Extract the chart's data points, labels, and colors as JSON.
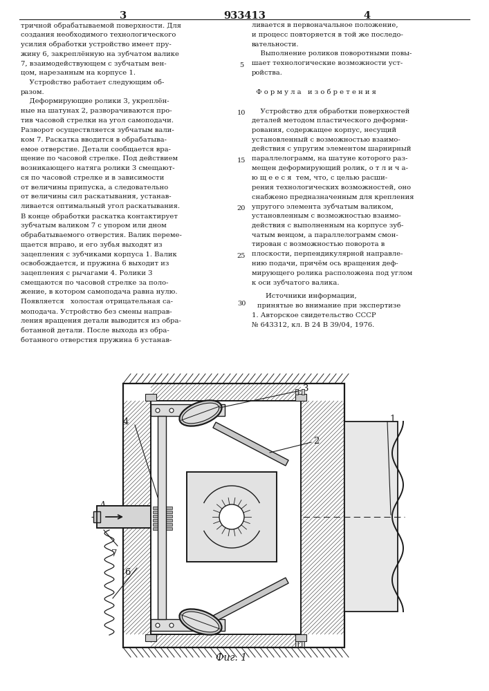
{
  "background_color": "#ffffff",
  "text_color": "#1a1a1a",
  "page_num_left": "3",
  "patent_num": "933413",
  "page_num_right": "4",
  "col1_text": [
    "тричной обрабатываемой поверхности. Для",
    "создания необходимого технологического",
    "усилия обработки устройство имеет пру-",
    "жину 6, закреплённую на зубчатом валике",
    "7, взаимодействующем с зубчатым вен-",
    "цом, нарезанным на корпусе 1.",
    "    Устройство работает следующим об-",
    "разом.",
    "    Деформирующие ролики 3, укреплён-",
    "ные на шатунах 2, разворачиваются про-",
    "тив часовой стрелки на угол самоподачи.",
    "Разворот осуществляется зубчатым вали-",
    "ком 7. Раскатка вводится в обрабатыва-",
    "емое отверстие. Детали сообщается вра-",
    "щение по часовой стрелке. Под действием",
    "возникающего натяга ролики 3 смещают-",
    "ся по часовой стрелке и в зависимости",
    "от величины припуска, а следовательно",
    "от величины сил раскатывания, устанав-",
    "ливается оптимальный угол раскатывания.",
    "В конце обработки раскатка контактирует",
    "зубчатым валиком 7 с упором или дном",
    "обрабатываемого отверстия. Валик переме-",
    "щается вправо, и его зубья выходят из",
    "зацепления с зубчиками корпуса 1. Валик",
    "освобождается, и пружина 6 выходит из",
    "зацепления с рычагами 4. Ролики 3",
    "смещаются по часовой стрелке за поло-",
    "жение, в котором самоподача равна нулю.",
    "Появляется   холостая отрицательная са-",
    "моподача. Устройство без смены направ-",
    "ления вращения детали выводится из обра-",
    "ботанной детали. После выхода из обра-",
    "ботанного отверстия пружина 6 устанав-"
  ],
  "col2_text": [
    "ливается в первоначальное положение,",
    "и процесс повторяется в той же последо-",
    "вательности.",
    "    Выполнение роликов поворотными повы-",
    "шает технологические возможности уст-",
    "ройства.",
    "",
    "  Ф о р м у л а   и з о б р е т е н и я",
    "",
    "    Устройство для обработки поверхностей",
    "деталей методом пластического деформи-",
    "рования, содержащее корпус, несущий",
    "установленный с возможностью взаимо-",
    "действия с упругим элементом шарнирный",
    "параллелограмм, на шатуне которого раз-",
    "мещен деформирующий ролик, о т л и ч а-",
    "ю щ е е с я  тем, что, с целью расши-",
    "рения технологических возможностей, оно",
    "снабжено предназначенным для крепления",
    "упругого элемента зубчатым валиком,",
    "установленным с возможностью взаимо-",
    "действия с выполненным на корпусе зуб-",
    "чатым венцом, а параллелограмм смон-",
    "тирован с возможностью поворота в",
    "плоскости, перпендикулярной направле-",
    "нию подачи, причём ось вращения деф-",
    "мирующего ролика расположена под углом",
    "к оси зубчатого валика."
  ],
  "src_header": "Источники информации,",
  "src_sub": "принятые во внимание при экспертизе",
  "src1": "1. Авторское свидетельство СССР",
  "src1b": "№ 643312, кл. В 24 В 39/04, 1976.",
  "fig_label": "Фиг. 1",
  "line_numbers": [
    "5",
    "10",
    "15",
    "20",
    "25",
    "30"
  ]
}
